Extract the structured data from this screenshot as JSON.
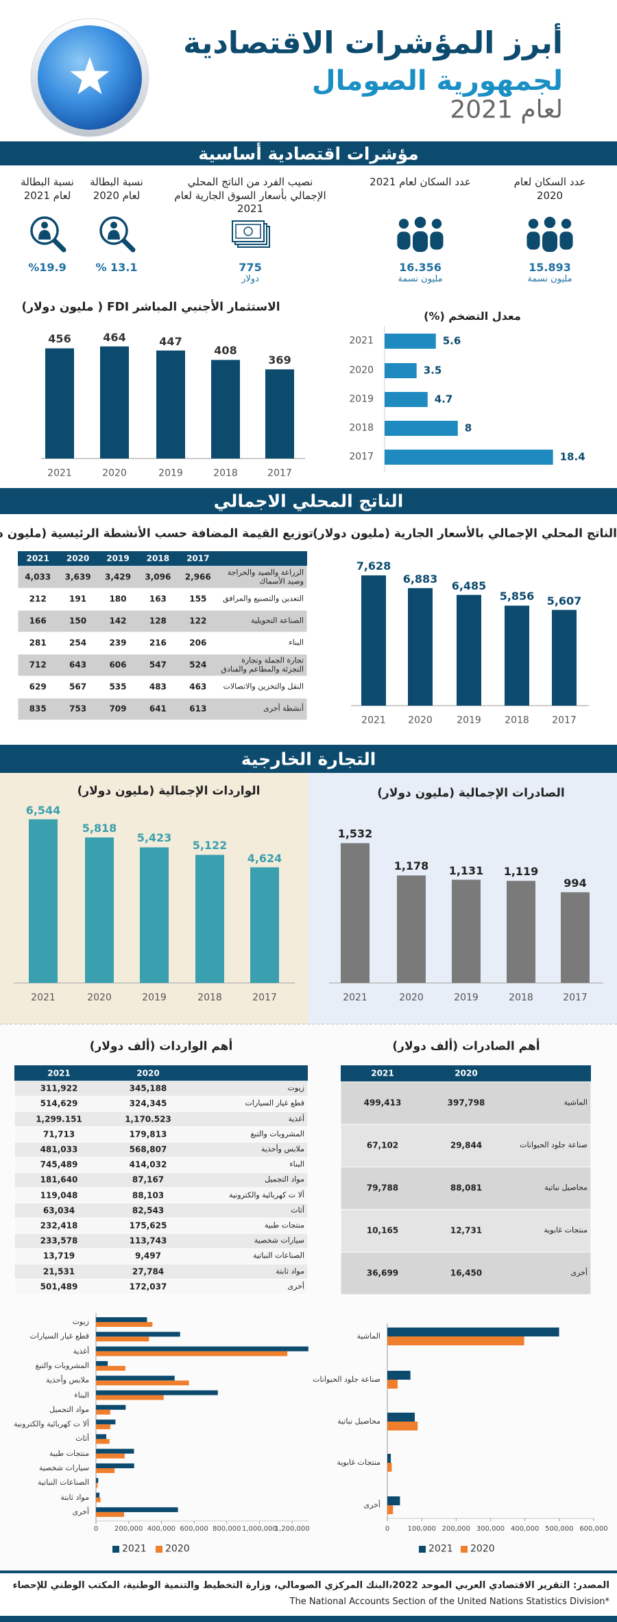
{
  "header": {
    "title": "أبرز المؤشرات الاقتصادية",
    "subtitle": "لجمهورية الصومال",
    "year": "لعام 2021"
  },
  "sections": [
    "مؤشرات اقتصادية أساسية",
    "الناتج المحلي الاجمالي",
    "التجارة الخارجية"
  ],
  "indicators": [
    {
      "label": "عدد السكان لعام 2020",
      "value": "15.893",
      "unit": "مليون نسمة"
    },
    {
      "label": "عدد السكان لعام 2021",
      "value": "16.356",
      "unit": "مليون نسمة"
    },
    {
      "label": "نصيب الفرد من الناتج المحلي الإجمالي بأسعار السوق الجارية لعام 2021",
      "value": "775",
      "unit": "دولار"
    },
    {
      "label": "نسبة البطالة لعام 2020",
      "value": "% 13.1"
    },
    {
      "label": "نسبة البطالة لعام 2021",
      "value": "%19.9"
    }
  ],
  "chart_data": [
    {
      "type": "bar",
      "title": "الاستثمار الأجنبي المباشر  FDI  ( مليون دولار)",
      "categories": [
        "2021",
        "2020",
        "2019",
        "2018",
        "2017"
      ],
      "values": [
        456,
        464,
        447,
        408,
        369
      ],
      "color": "#0c4a6e",
      "ylim": [
        0,
        500
      ]
    },
    {
      "type": "barh",
      "title": "معدل التضخم (%)",
      "categories": [
        "2021",
        "2020",
        "2019",
        "2018",
        "2017"
      ],
      "values": [
        5.6,
        3.5,
        4.7,
        8,
        18.4
      ],
      "color": "#1f8ac0",
      "xlim": [
        0,
        20
      ]
    },
    {
      "type": "bar",
      "title": "الناتج المحلي الإجمالي بالأسعار الجارية (مليون دولار)",
      "categories": [
        "2021",
        "2020",
        "2019",
        "2018",
        "2017"
      ],
      "values": [
        7628,
        6883,
        6485,
        5856,
        5607
      ],
      "value_labels": [
        "7,628",
        "6,883",
        "6,485",
        "5,856",
        "5,607"
      ],
      "color": "#0c4a6e",
      "ylim": [
        0,
        8000
      ]
    },
    {
      "type": "bar",
      "title": "الواردات الإجمالية (مليون دولار)",
      "categories": [
        "2021",
        "2020",
        "2019",
        "2018",
        "2017"
      ],
      "values": [
        6544,
        5818,
        5423,
        5122,
        4624
      ],
      "value_labels": [
        "6,544",
        "5,818",
        "5,423",
        "5,122",
        "4,624"
      ],
      "color": "#3a9fae",
      "ylim": [
        0,
        7000
      ]
    },
    {
      "type": "bar",
      "title": "الصادرات الإجمالية (مليون دولار)",
      "categories": [
        "2021",
        "2020",
        "2019",
        "2018",
        "2017"
      ],
      "values": [
        1532,
        1178,
        1131,
        1119,
        994
      ],
      "value_labels": [
        "1,532",
        "1,178",
        "1,131",
        "1,119",
        "994"
      ],
      "color": "#7a7a7a",
      "ylim": [
        0,
        1700
      ]
    },
    {
      "type": "barh",
      "categories": [
        "زيوت",
        "قطع غيار السيارات",
        "أغذية",
        "المشروبات والتبغ",
        "ملابس وأحذية",
        "البناء",
        "مواد التجميل",
        "ألا ت كهربائية والكترونية",
        "أثاث",
        "منتجات طبية",
        "سيارات شخصية",
        "الصناعات النباتية",
        "مواد ثابتة",
        "أخرى"
      ],
      "series": [
        {
          "name": "2021",
          "color": "#0c4a6e",
          "values": [
            311922,
            514629,
            1299151,
            71713,
            481033,
            745489,
            181640,
            119048,
            63034,
            232418,
            233578,
            13719,
            21531,
            501489
          ]
        },
        {
          "name": "2020",
          "color": "#f07f2d",
          "values": [
            345188,
            324345,
            1170523,
            179813,
            568807,
            414032,
            87167,
            88103,
            82543,
            175625,
            113743,
            9497,
            27784,
            172037
          ]
        }
      ],
      "xlim": [
        0,
        1300000
      ],
      "xticks": [
        0,
        {
          "value": 200000,
          "label": "200,000"
        },
        {
          "value": 400000,
          "label": "400,000"
        },
        {
          "value": 600000,
          "label": "600,000"
        },
        {
          "value": 800000,
          "label": "800,000"
        },
        {
          "value": 1000000,
          "label": "1,000,000"
        },
        {
          "value": 1200000,
          "label": "1,200,000"
        }
      ],
      "legend": "bottom"
    },
    {
      "type": "barh",
      "categories": [
        "الماشية",
        "صناعة جلود الحيوانات",
        "محاصيل نباتية",
        "منتجات غابوية",
        "أخرى"
      ],
      "series": [
        {
          "name": "2021",
          "color": "#0c4a6e",
          "values": [
            499413,
            67102,
            79788,
            10165,
            36699
          ]
        },
        {
          "name": "2020",
          "color": "#f07f2d",
          "values": [
            397798,
            29844,
            88081,
            12731,
            16450
          ]
        }
      ],
      "xlim": [
        0,
        600000
      ],
      "xticks": [
        0,
        {
          "value": 100000,
          "label": "100,000"
        },
        {
          "value": 200000,
          "label": "200,000"
        },
        {
          "value": 300000,
          "label": "300,000"
        },
        {
          "value": 400000,
          "label": "400,000"
        },
        {
          "value": 500000,
          "label": "500,000"
        },
        {
          "value": 600000,
          "label": "600,000"
        }
      ],
      "legend": "bottom"
    }
  ],
  "tables": [
    {
      "title": "توزيع القيمة المضافة حسب الأنشطة الرئيسية (مليون دولار)",
      "columns": [
        "2021",
        "2020",
        "2019",
        "2018",
        "2017"
      ],
      "rows": [
        {
          "label": "الزراعة والصيد والحراجة وصيد الأسماك",
          "values": [
            "4,033",
            "3,639",
            "3,429",
            "3,096",
            "2,966"
          ]
        },
        {
          "label": "التعدين والتصنيع والمرافق",
          "values": [
            "212",
            "191",
            "180",
            "163",
            "155"
          ]
        },
        {
          "label": "الصناعة التحويلية",
          "values": [
            "166",
            "150",
            "142",
            "128",
            "122"
          ]
        },
        {
          "label": "البناء",
          "values": [
            "281",
            "254",
            "239",
            "216",
            "206"
          ]
        },
        {
          "label": "تجارة الجملة وتجارة التجزئة والمطاعم والفنادق",
          "values": [
            "712",
            "643",
            "606",
            "547",
            "524"
          ]
        },
        {
          "label": "النقل والتخزين والاتصالات",
          "values": [
            "629",
            "567",
            "535",
            "483",
            "463"
          ]
        },
        {
          "label": "أنشطة أخرى",
          "values": [
            "835",
            "753",
            "709",
            "641",
            "613"
          ]
        }
      ]
    },
    {
      "title": "أهم الواردات (ألف دولار)",
      "columns": [
        "2021",
        "2020"
      ],
      "rows": [
        {
          "label": "زيوت",
          "values": [
            "311,922",
            "345,188"
          ]
        },
        {
          "label": "قطع غيار السيارات",
          "values": [
            "514,629",
            "324,345"
          ]
        },
        {
          "label": "أغذية",
          "values": [
            "1,299.151",
            "1,170.523"
          ]
        },
        {
          "label": "المشروبات والتبغ",
          "values": [
            "71,713",
            "179,813"
          ]
        },
        {
          "label": "ملابس وأحذية",
          "values": [
            "481,033",
            "568,807"
          ]
        },
        {
          "label": "البناء",
          "values": [
            "745,489",
            "414,032"
          ]
        },
        {
          "label": "مواد التجميل",
          "values": [
            "181,640",
            "87,167"
          ]
        },
        {
          "label": "ألا ت كهربائية والكترونية",
          "values": [
            "119,048",
            "88,103"
          ]
        },
        {
          "label": "أثاث",
          "values": [
            "63,034",
            "82,543"
          ]
        },
        {
          "label": "منتجات طبية",
          "values": [
            "232,418",
            "175,625"
          ]
        },
        {
          "label": "سيارات شخصية",
          "values": [
            "233,578",
            "113,743"
          ]
        },
        {
          "label": "الصناعات النباتية",
          "values": [
            "13,719",
            "9,497"
          ]
        },
        {
          "label": "مواد ثابتة",
          "values": [
            "21,531",
            "27,784"
          ]
        },
        {
          "label": "أخرى",
          "values": [
            "501,489",
            "172,037"
          ]
        }
      ]
    },
    {
      "title": "أهم الصادرات (ألف دولار)",
      "columns": [
        "2021",
        "2020"
      ],
      "rows": [
        {
          "label": "الماشية",
          "values": [
            "499,413",
            "397,798"
          ]
        },
        {
          "label": "صناعة جلود الحيوانات",
          "values": [
            "67,102",
            "29,844"
          ]
        },
        {
          "label": "محاصيل نباتية",
          "values": [
            "79,788",
            "88,081"
          ]
        },
        {
          "label": "منتجات غابوية",
          "values": [
            "10,165",
            "12,731"
          ]
        },
        {
          "label": "أخرى",
          "values": [
            "36,699",
            "16,450"
          ]
        }
      ]
    }
  ],
  "source": [
    "المصدر: التقرير الاقتصادي العربي الموحد 2022،البنك المركزي  الصومالي، وزارة التخطيط والتنمية الوطنية، المكتب الوطني للإحصاء",
    "The National Accounts Section of the United Nations Statistics Division*"
  ]
}
